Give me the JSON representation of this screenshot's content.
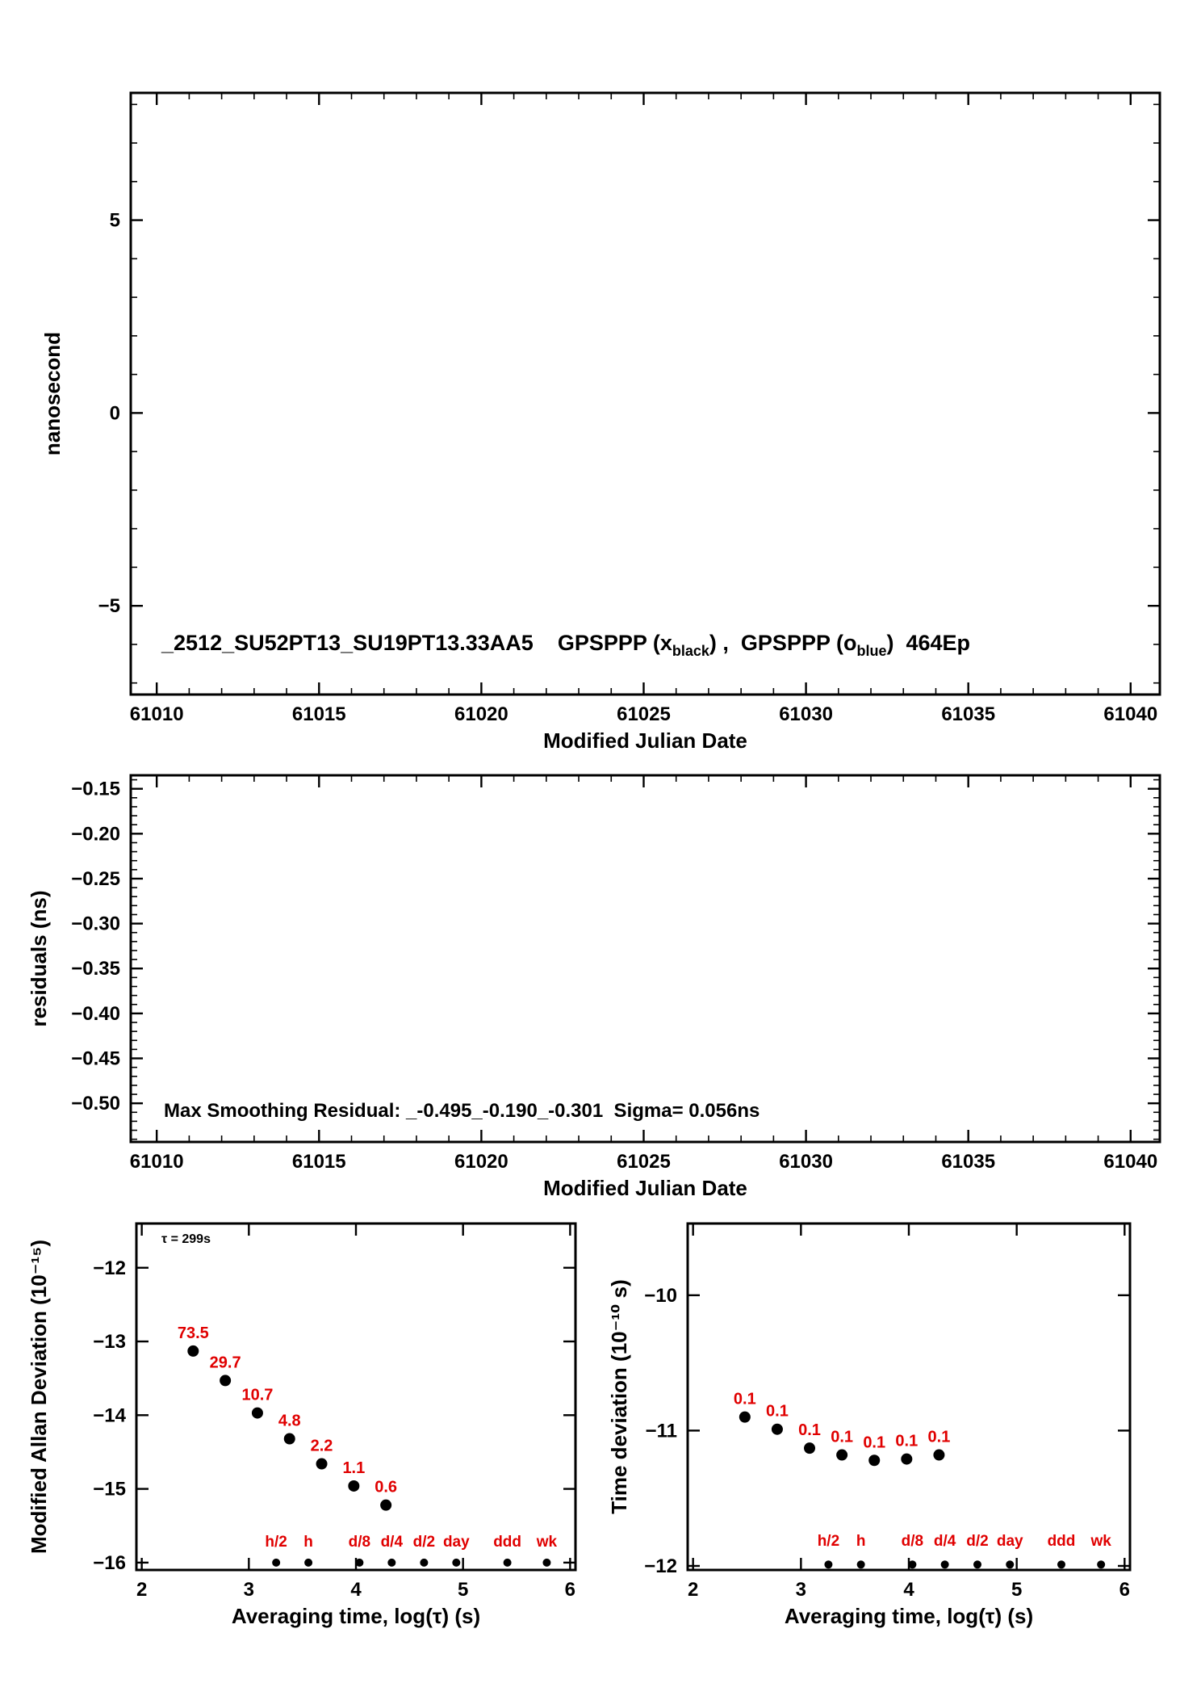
{
  "page": {
    "background": "#ffffff",
    "frame_color": "#000000",
    "accent_red": "#e00000"
  },
  "chart_data": [
    {
      "id": "mjd_top",
      "type": "scatter",
      "xlabel": "Modified Julian Date",
      "ylabel": "nanosecond",
      "xlim": [
        61009.2,
        61040.9
      ],
      "ylim": [
        -7.3,
        8.3
      ],
      "xticks": {
        "values": [
          61010,
          61015,
          61020,
          61025,
          61030,
          61035,
          61040
        ],
        "labels": [
          "61010",
          "61015",
          "61020",
          "61025",
          "61030",
          "61035",
          "61040"
        ]
      },
      "yticks": {
        "values": [
          5,
          0,
          -5
        ],
        "labels": [
          "5",
          "0",
          "−5"
        ]
      },
      "x_minor_step": 1,
      "y_minor_step": 1,
      "grid": false,
      "series": [],
      "inline_label": {
        "parts": [
          {
            "text": "_2512_SU52PT13_SU19PT13.33AA5",
            "sub": false
          },
          {
            "text": "    GPSPPP (x",
            "sub": false
          },
          {
            "text": "black",
            "sub": true
          },
          {
            "text": ") ,  GPSPPP (o",
            "sub": false
          },
          {
            "text": "blue",
            "sub": true
          },
          {
            "text": ")  464Ep",
            "sub": false
          }
        ]
      }
    },
    {
      "id": "residuals",
      "type": "scatter",
      "xlabel": "Modified Julian Date",
      "ylabel": "residuals (ns)",
      "xlim": [
        61009.2,
        61040.9
      ],
      "ylim": [
        -0.543,
        -0.135
      ],
      "xticks": {
        "values": [
          61010,
          61015,
          61020,
          61025,
          61030,
          61035,
          61040
        ],
        "labels": [
          "61010",
          "61015",
          "61020",
          "61025",
          "61030",
          "61035",
          "61040"
        ]
      },
      "yticks": {
        "values": [
          -0.15,
          -0.2,
          -0.25,
          -0.3,
          -0.35,
          -0.4,
          -0.45,
          -0.5
        ],
        "labels": [
          "−0.15",
          "−0.20",
          "−0.25",
          "−0.30",
          "−0.35",
          "−0.40",
          "−0.45",
          "−0.50"
        ]
      },
      "x_minor_step": 1,
      "y_minor_step": 0.01,
      "grid": false,
      "series": [],
      "annotation": "Max Smoothing Residual: _-0.495_-0.190_-0.301  Sigma= 0.056ns"
    },
    {
      "id": "mdev",
      "type": "scatter",
      "xlabel": "Averaging time, log(τ) (s)",
      "ylabel": "Modified Allan Deviation (10⁻¹⁵)",
      "xlim": [
        1.95,
        6.05
      ],
      "ylim": [
        -16.1,
        -11.4
      ],
      "xticks": {
        "values": [
          2,
          3,
          4,
          5,
          6
        ],
        "labels": [
          "2",
          "3",
          "4",
          "5",
          "6"
        ]
      },
      "yticks": {
        "values": [
          -12,
          -13,
          -14,
          -15,
          -16
        ],
        "labels": [
          "−12",
          "−13",
          "−14",
          "−15",
          "−16"
        ]
      },
      "grid": false,
      "tau_note": "τ = 299s",
      "points": {
        "x": [
          2.48,
          2.78,
          3.08,
          3.38,
          3.68,
          3.98,
          4.28
        ],
        "y": [
          -13.13,
          -13.53,
          -13.97,
          -14.32,
          -14.66,
          -14.96,
          -15.22
        ],
        "value_labels": [
          "73.5",
          "29.7",
          "10.7",
          "4.8",
          "2.2",
          "1.1",
          "0.6"
        ]
      },
      "timescale_markers": {
        "labels": [
          "h/2",
          "h",
          "d/8",
          "d/4",
          "d/2",
          "day",
          "ddd",
          "wk"
        ],
        "x": [
          3.255,
          3.556,
          4.033,
          4.334,
          4.636,
          4.937,
          5.414,
          5.782
        ],
        "dot_y": -16.0,
        "label_y": -15.78
      }
    },
    {
      "id": "tdev",
      "type": "scatter",
      "xlabel": "Averaging time, log(τ) (s)",
      "ylabel": "Time deviation (10⁻¹⁰ s)",
      "xlim": [
        1.95,
        6.05
      ],
      "ylim": [
        -12.03,
        -9.47
      ],
      "xticks": {
        "values": [
          2,
          3,
          4,
          5,
          6
        ],
        "labels": [
          "2",
          "3",
          "4",
          "5",
          "6"
        ]
      },
      "yticks": {
        "values": [
          -10,
          -11,
          -12
        ],
        "labels": [
          "−10",
          "−11",
          "−12"
        ]
      },
      "grid": false,
      "points": {
        "x": [
          2.48,
          2.78,
          3.08,
          3.38,
          3.68,
          3.98,
          4.28
        ],
        "y": [
          -10.9,
          -10.99,
          -11.13,
          -11.18,
          -11.22,
          -11.21,
          -11.18
        ],
        "value_labels": [
          "0.1",
          "0.1",
          "0.1",
          "0.1",
          "0.1",
          "0.1",
          "0.1"
        ]
      },
      "timescale_markers": {
        "labels": [
          "h/2",
          "h",
          "d/8",
          "d/4",
          "d/2",
          "day",
          "ddd",
          "wk"
        ],
        "x": [
          3.255,
          3.556,
          4.033,
          4.334,
          4.636,
          4.937,
          5.414,
          5.782
        ],
        "dot_y": -11.99,
        "label_y": -11.85
      }
    }
  ]
}
